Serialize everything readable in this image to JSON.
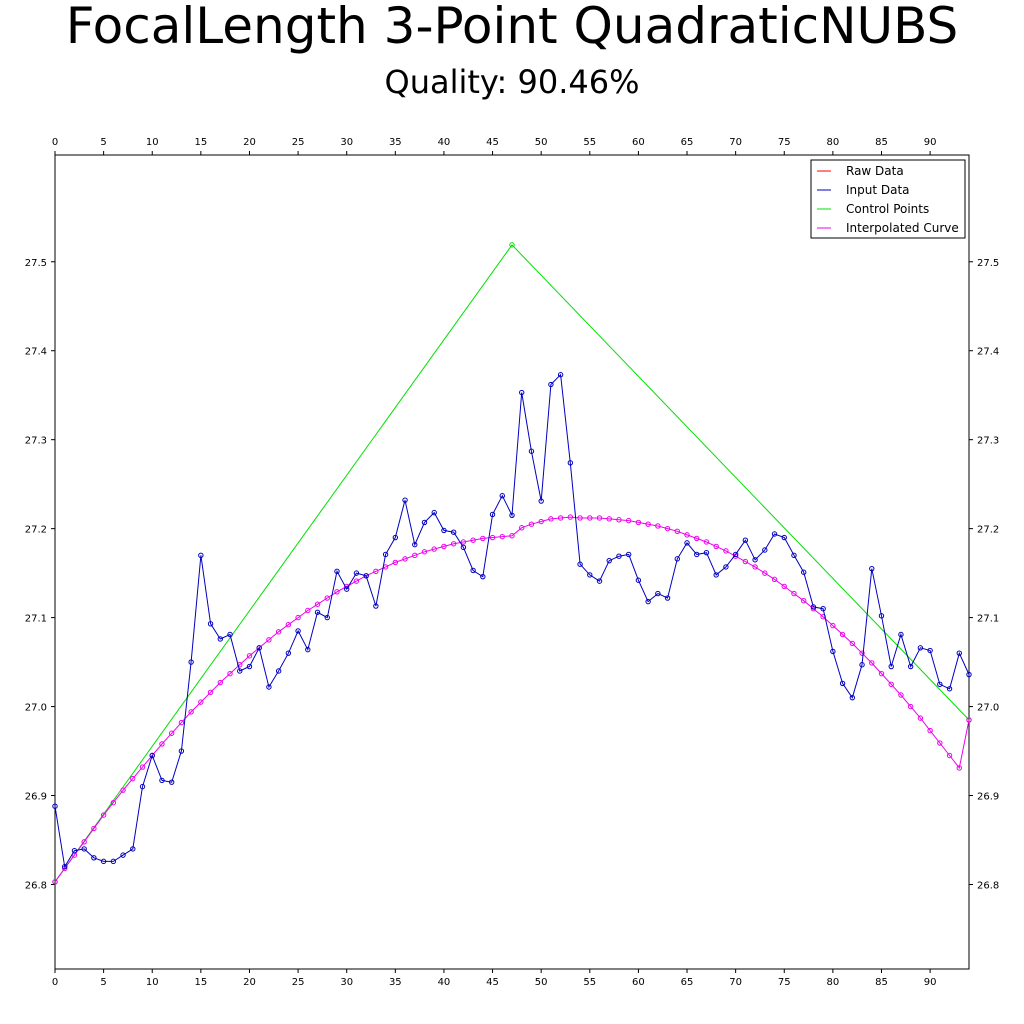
{
  "title": "FocalLength 3-Point QuadraticNUBS",
  "subtitle": "Quality: 90.46%",
  "colors": {
    "raw": "#ff0000",
    "input": "#0000c0",
    "control": "#00e000",
    "curve": "#ee00ee"
  },
  "chart_data": {
    "type": "line",
    "title": "FocalLength 3-Point QuadraticNUBS",
    "subtitle": "Quality: 90.46%",
    "xlim": [
      0,
      94
    ],
    "ylim": [
      26.705,
      27.62
    ],
    "x_ticks": [
      0,
      5,
      10,
      15,
      20,
      25,
      30,
      35,
      40,
      45,
      50,
      55,
      60,
      65,
      70,
      75,
      80,
      85,
      90
    ],
    "y_ticks": [
      "26.8",
      "26.9",
      "27.0",
      "27.1",
      "27.2",
      "27.3",
      "27.4",
      "27.5"
    ],
    "grid": false,
    "legend_position": "top-right",
    "legend": [
      "Raw Data",
      "Input Data",
      "Control Points",
      "Interpolated Curve"
    ],
    "series": [
      {
        "name": "Input Data",
        "x_start": 0,
        "x_step": 1,
        "values": [
          26.888,
          26.82,
          26.838,
          26.84,
          26.83,
          26.826,
          26.826,
          26.833,
          26.84,
          26.91,
          26.945,
          26.917,
          26.915,
          26.95,
          27.05,
          27.17,
          27.093,
          27.076,
          27.081,
          27.04,
          27.045,
          27.066,
          27.022,
          27.04,
          27.06,
          27.085,
          27.064,
          27.106,
          27.1,
          27.152,
          27.132,
          27.15,
          27.147,
          27.113,
          27.171,
          27.19,
          27.232,
          27.182,
          27.207,
          27.218,
          27.198,
          27.196,
          27.179,
          27.153,
          27.146,
          27.216,
          27.237,
          27.215,
          27.353,
          27.287,
          27.231,
          27.362,
          27.373,
          27.274,
          27.16,
          27.148,
          27.141,
          27.164,
          27.169,
          27.171,
          27.142,
          27.118,
          27.127,
          27.122,
          27.166,
          27.184,
          27.171,
          27.173,
          27.148,
          27.157,
          27.171,
          27.187,
          27.165,
          27.176,
          27.194,
          27.19,
          27.17,
          27.151,
          27.112,
          27.11,
          27.062,
          27.026,
          27.01,
          27.047,
          27.155,
          27.102,
          27.045,
          27.081,
          27.045,
          27.066,
          27.063,
          27.025,
          27.02,
          27.06,
          27.036
        ]
      },
      {
        "name": "Control Points",
        "x": [
          0,
          47,
          94
        ],
        "values": [
          26.803,
          27.519,
          26.985
        ]
      },
      {
        "name": "Interpolated Curve",
        "x_start": 0,
        "x_step": 1,
        "values": [
          26.803,
          26.818,
          26.833,
          26.848,
          26.863,
          26.878,
          26.892,
          26.906,
          26.919,
          26.932,
          26.945,
          26.958,
          26.97,
          26.982,
          26.994,
          27.005,
          27.016,
          27.027,
          27.037,
          27.047,
          27.057,
          27.066,
          27.075,
          27.084,
          27.092,
          27.1,
          27.108,
          27.115,
          27.122,
          27.129,
          27.135,
          27.141,
          27.147,
          27.152,
          27.157,
          27.162,
          27.166,
          27.17,
          27.174,
          27.177,
          27.18,
          27.183,
          27.185,
          27.187,
          27.189,
          27.19,
          27.191,
          27.192,
          27.201,
          27.205,
          27.208,
          27.211,
          27.212,
          27.213,
          27.212,
          27.212,
          27.212,
          27.211,
          27.21,
          27.209,
          27.207,
          27.205,
          27.203,
          27.2,
          27.197,
          27.193,
          27.189,
          27.185,
          27.18,
          27.175,
          27.169,
          27.163,
          27.157,
          27.15,
          27.143,
          27.135,
          27.127,
          27.119,
          27.11,
          27.101,
          27.091,
          27.081,
          27.071,
          27.06,
          27.049,
          27.037,
          27.025,
          27.013,
          27.0,
          26.987,
          26.973,
          26.959,
          26.945,
          26.931,
          26.985
        ]
      }
    ]
  }
}
